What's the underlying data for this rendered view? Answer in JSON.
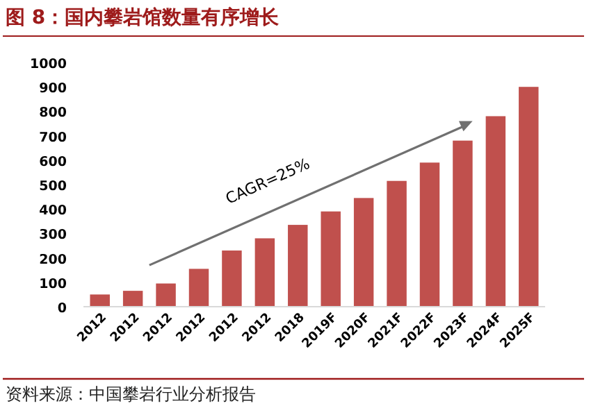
{
  "chart_data": {
    "type": "bar",
    "title": "图 8：国内攀岩馆数量有序增长",
    "categories": [
      "2012",
      "2012",
      "2012",
      "2012",
      "2012",
      "2012",
      "2018",
      "2019F",
      "2020F",
      "2021F",
      "2022F",
      "2023F",
      "2024F",
      "2025F"
    ],
    "values": [
      50,
      65,
      95,
      155,
      230,
      280,
      335,
      390,
      445,
      515,
      590,
      680,
      780,
      900
    ],
    "color": "#c0504d",
    "ylim": [
      0,
      1000
    ],
    "yticks": [
      0,
      100,
      200,
      300,
      400,
      500,
      600,
      700,
      800,
      900,
      1000
    ],
    "annotations": [
      "CAGR=25%",
      "资料来源：中国攀岩行业分析报告"
    ]
  }
}
